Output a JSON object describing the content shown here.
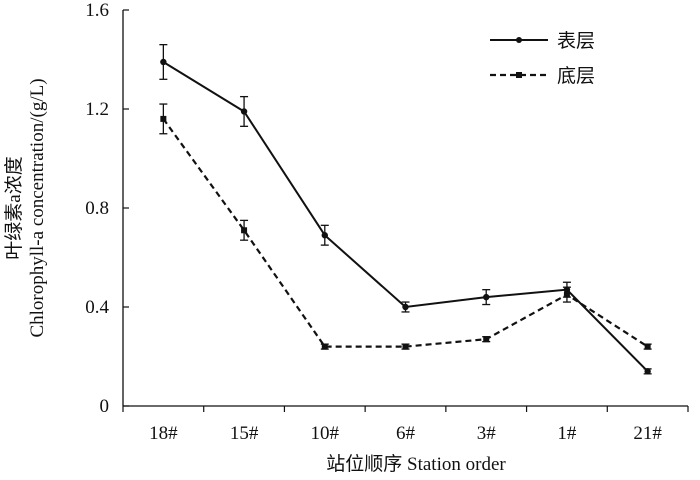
{
  "chart_data": {
    "type": "line",
    "title": "",
    "xlabel": "站位顺序 Station order",
    "ylabel_lines": [
      "叶绿素a浓度",
      "Chlorophyll-a concentration/(g/L)"
    ],
    "categories": [
      "18#",
      "15#",
      "10#",
      "6#",
      "3#",
      "1#",
      "21#"
    ],
    "ylim": [
      0,
      1.6
    ],
    "yticks": [
      "0",
      "0.4",
      "0.8",
      "1.2",
      "1.6"
    ],
    "grid": false,
    "legend_position": "top-right",
    "series": [
      {
        "name": "表层",
        "style": "solid",
        "marker": "circle",
        "color": "#111111",
        "values": [
          1.39,
          1.19,
          0.69,
          0.4,
          0.44,
          0.47,
          0.14
        ],
        "errors": [
          0.07,
          0.06,
          0.04,
          0.02,
          0.03,
          0.03,
          0.01
        ]
      },
      {
        "name": "底层",
        "style": "dashed",
        "marker": "square",
        "color": "#111111",
        "values": [
          1.16,
          0.71,
          0.24,
          0.24,
          0.27,
          0.45,
          0.24
        ],
        "errors": [
          0.06,
          0.04,
          0.01,
          0.01,
          0.01,
          0.03,
          0.01
        ]
      }
    ]
  }
}
